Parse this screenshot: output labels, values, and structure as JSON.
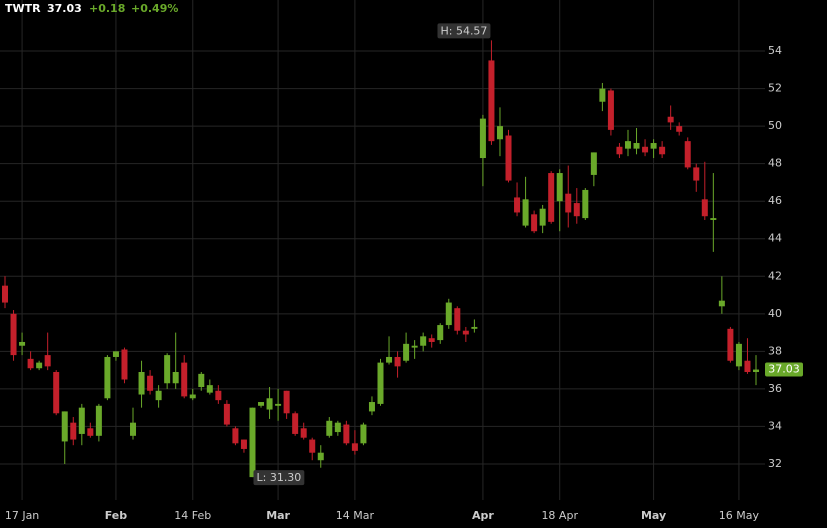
{
  "header": {
    "ticker": "TWTR",
    "last": "37.03",
    "change": "+0.18",
    "change_pct": "+0.49%"
  },
  "chart_data": {
    "type": "candlestick",
    "up_color": "#6aa92a",
    "down_color": "#c4202b",
    "grid": true,
    "categories": [
      null,
      null,
      "17 Jan",
      null,
      null,
      null,
      null,
      null,
      null,
      null,
      null,
      null,
      null,
      "Feb",
      null,
      null,
      null,
      null,
      null,
      null,
      null,
      null,
      "14 Feb",
      null,
      null,
      null,
      null,
      null,
      null,
      null,
      null,
      null,
      "Mar",
      null,
      null,
      null,
      null,
      null,
      null,
      null,
      null,
      "14 Mar",
      null,
      null,
      null,
      null,
      null,
      null,
      null,
      null,
      null,
      null,
      null,
      null,
      null,
      null,
      "Apr",
      null,
      null,
      null,
      null,
      null,
      null,
      null,
      null,
      "18 Apr",
      null,
      null,
      null,
      null,
      null,
      null,
      null,
      null,
      null,
      null,
      "May",
      null,
      null,
      null,
      null,
      null,
      null,
      null,
      null,
      null,
      "16 May",
      null,
      null
    ],
    "series": {
      "open": [
        41.5,
        40,
        38.3,
        37.6,
        37.1,
        37.8,
        36.9,
        33.2,
        34.2,
        33.6,
        33.9,
        33.5,
        35.5,
        37.7,
        38.1,
        33.5,
        35.7,
        36.7,
        35.4,
        36.3,
        36.3,
        37.4,
        35.5,
        36.1,
        35.8,
        35.9,
        35.2,
        33.9,
        33.3,
        31.3,
        35.1,
        34.9,
        35.1,
        35.9,
        34.7,
        33.9,
        33.3,
        32.2,
        33.5,
        33.7,
        34.1,
        33.1,
        33.1,
        34.8,
        35.2,
        37.4,
        37.7,
        37.5,
        38.2,
        38.3,
        38.7,
        38.6,
        39.4,
        40.3,
        39.1,
        39.2,
        48.3,
        53.5,
        49.3,
        49.5,
        46.2,
        44.7,
        45.3,
        44.7,
        47.5,
        46,
        46.4,
        45.9,
        45.1,
        47.4,
        51.3,
        51.9,
        48.9,
        48.8,
        48.8,
        48.9,
        48.8,
        48.9,
        50.5,
        50,
        49.2,
        47.8,
        46.1,
        45,
        40.4,
        39.2,
        37.2,
        37.5,
        36.9
      ],
      "high": [
        42,
        40.2,
        39,
        38,
        37.5,
        39,
        37,
        34.8,
        34.5,
        35.2,
        34.2,
        35.2,
        37.8,
        38,
        38.2,
        35,
        37.5,
        37,
        36.2,
        37.9,
        39,
        37.8,
        36,
        36.9,
        36.5,
        36.2,
        35.4,
        34,
        33.3,
        35,
        35.3,
        36.1,
        36,
        35.9,
        34.8,
        34.2,
        33.4,
        33,
        34.5,
        34.3,
        34.3,
        33.8,
        34.2,
        35.6,
        37.6,
        38.8,
        38,
        39,
        38.6,
        39,
        38.9,
        39.5,
        40.8,
        40.4,
        39.3,
        39.7,
        50.6,
        54.57,
        51,
        49.8,
        47,
        47.3,
        45.5,
        45.8,
        47.6,
        47.7,
        47.9,
        46.7,
        46.7,
        48.6,
        52.3,
        52,
        49.1,
        49.8,
        49.9,
        49.3,
        49.3,
        49.2,
        51.1,
        50.2,
        49.4,
        48,
        48.1,
        47.5,
        42,
        39.3,
        38.5,
        38.7,
        37.8
      ],
      "low": [
        40.3,
        37.5,
        37.8,
        37,
        37,
        37,
        34.6,
        32,
        33,
        33,
        33.4,
        33.2,
        35.4,
        37.5,
        36.3,
        33.3,
        35,
        35.7,
        35,
        36,
        36,
        35.5,
        35.4,
        35.9,
        35.7,
        35.2,
        34,
        33,
        32.6,
        31.3,
        35,
        34.4,
        34.3,
        34.4,
        33.5,
        33.3,
        32.2,
        31.8,
        33.4,
        33.5,
        33,
        32.5,
        33,
        34.6,
        35.1,
        37.3,
        36.6,
        37.4,
        37.6,
        38,
        38.2,
        38.4,
        39.2,
        38.9,
        38.5,
        39,
        46.8,
        49,
        48.4,
        47,
        45.2,
        44.6,
        44.3,
        44.3,
        44.8,
        44.4,
        44.6,
        44.8,
        45,
        46.8,
        50.8,
        49.5,
        48.3,
        48.4,
        48.5,
        48.4,
        48.3,
        48.3,
        49.8,
        49.5,
        47.7,
        46.5,
        45,
        43.3,
        40,
        37.4,
        37,
        36.8,
        36.2
      ],
      "close": [
        40.6,
        37.8,
        38.5,
        37.1,
        37.4,
        37.2,
        34.7,
        34.8,
        33.3,
        35,
        33.5,
        35.1,
        37.7,
        38,
        36.5,
        34.2,
        36.9,
        35.9,
        35.9,
        37.8,
        36.9,
        35.6,
        35.7,
        36.8,
        36.2,
        35.4,
        34.1,
        33.1,
        32.8,
        35,
        35.3,
        35.5,
        35.2,
        34.7,
        33.6,
        33.4,
        32.6,
        32.6,
        34.3,
        34.2,
        33.1,
        32.7,
        34.1,
        35.3,
        37.4,
        37.7,
        37.2,
        38.4,
        38.3,
        38.8,
        38.5,
        39.4,
        40.6,
        39.1,
        38.9,
        39.3,
        50.4,
        49.2,
        50,
        47.1,
        45.4,
        46.1,
        44.4,
        45.6,
        44.9,
        47.5,
        45.4,
        45.2,
        46.6,
        48.6,
        52,
        49.8,
        48.5,
        49.2,
        49.1,
        48.6,
        49.1,
        48.5,
        50.2,
        49.7,
        47.8,
        47.1,
        45.2,
        45.1,
        40.7,
        37.5,
        38.4,
        36.9,
        37.03
      ]
    },
    "annotations": [
      {
        "label": "H: 54.57",
        "index": 57,
        "value": 54.57
      },
      {
        "label": "L: 31.30",
        "index": 29,
        "value": 31.3
      }
    ],
    "ylim": [
      30.08,
      56.72
    ],
    "yticks": [
      32,
      34,
      36,
      38,
      40,
      42,
      44,
      46,
      48,
      50,
      52,
      54
    ]
  }
}
